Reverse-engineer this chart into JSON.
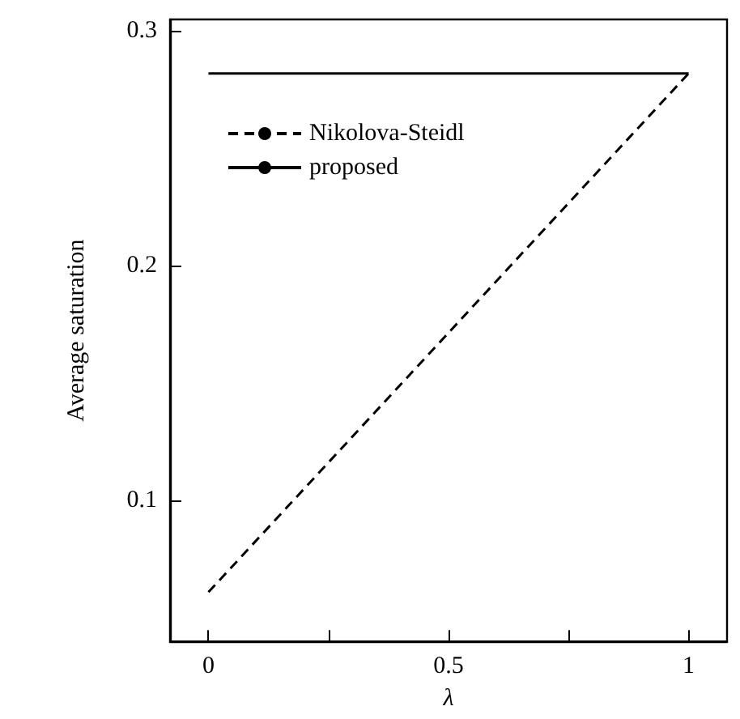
{
  "chart_data": {
    "type": "line",
    "xlabel": "λ",
    "ylabel": "Average saturation",
    "x": [
      0,
      1
    ],
    "series": [
      {
        "name": "Nikolova-Steidl",
        "color": "#000000",
        "values": [
          0.061,
          0.282
        ],
        "line_style": "dashed"
      },
      {
        "name": "proposed",
        "color": "#000000",
        "values": [
          0.282,
          0.282
        ],
        "line_style": "solid"
      }
    ],
    "xlim": [
      -0.08,
      1.08
    ],
    "xticks": [
      0,
      {
        "value": 0.25,
        "label": null
      },
      0.5,
      {
        "value": 0.75,
        "label": null
      },
      1
    ],
    "ylim": [
      0.04,
      0.305
    ],
    "yticks": [
      0.1,
      0.2,
      0.3
    ],
    "grid": false,
    "legend": "top left",
    "marker": "none"
  }
}
